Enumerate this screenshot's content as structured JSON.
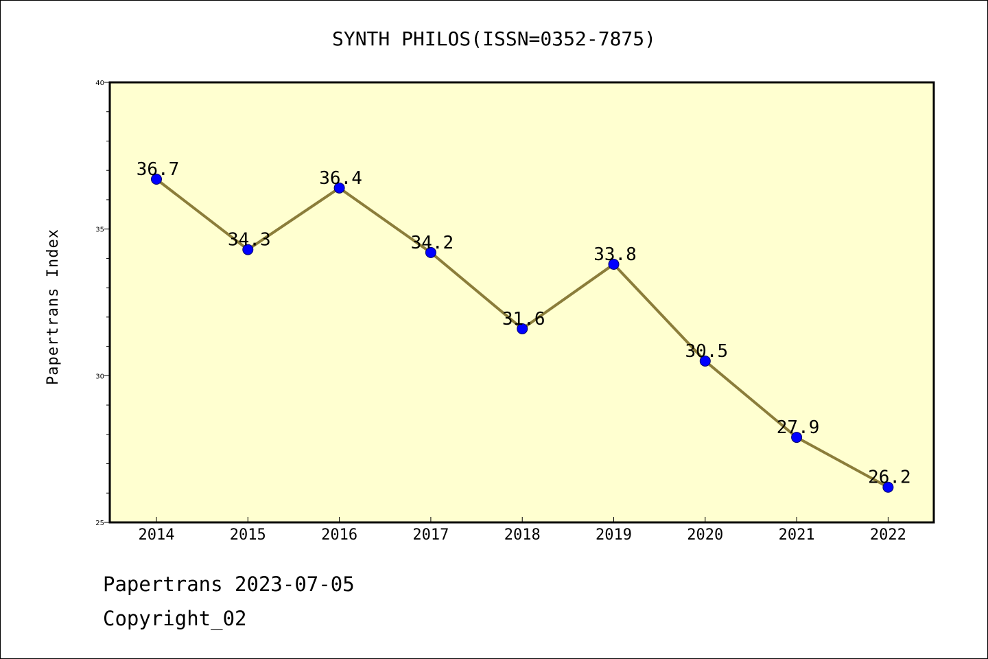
{
  "chart_data": {
    "type": "line",
    "title": "SYNTH PHILOS(ISSN=0352-7875)",
    "xlabel": "",
    "ylabel": "Papertrans Index",
    "categories": [
      "2014",
      "2015",
      "2016",
      "2017",
      "2018",
      "2019",
      "2020",
      "2021",
      "2022"
    ],
    "values": [
      36.7,
      34.3,
      36.4,
      34.2,
      31.6,
      33.8,
      30.5,
      27.9,
      26.2
    ],
    "data_labels": [
      "36.7",
      "34.3",
      "36.4",
      "34.2",
      "31.6",
      "33.8",
      "30.5",
      "27.9",
      "26.2"
    ],
    "ylim": [
      25,
      40
    ],
    "yticks": [
      25,
      30,
      35,
      40
    ],
    "grid": false,
    "colors": {
      "plot_background": "#ffffd0",
      "line": "#8b7d3a",
      "marker": "#0000ff"
    }
  },
  "footer": {
    "line1": "Papertrans 2023-07-05",
    "line2": "Copyright_02"
  }
}
